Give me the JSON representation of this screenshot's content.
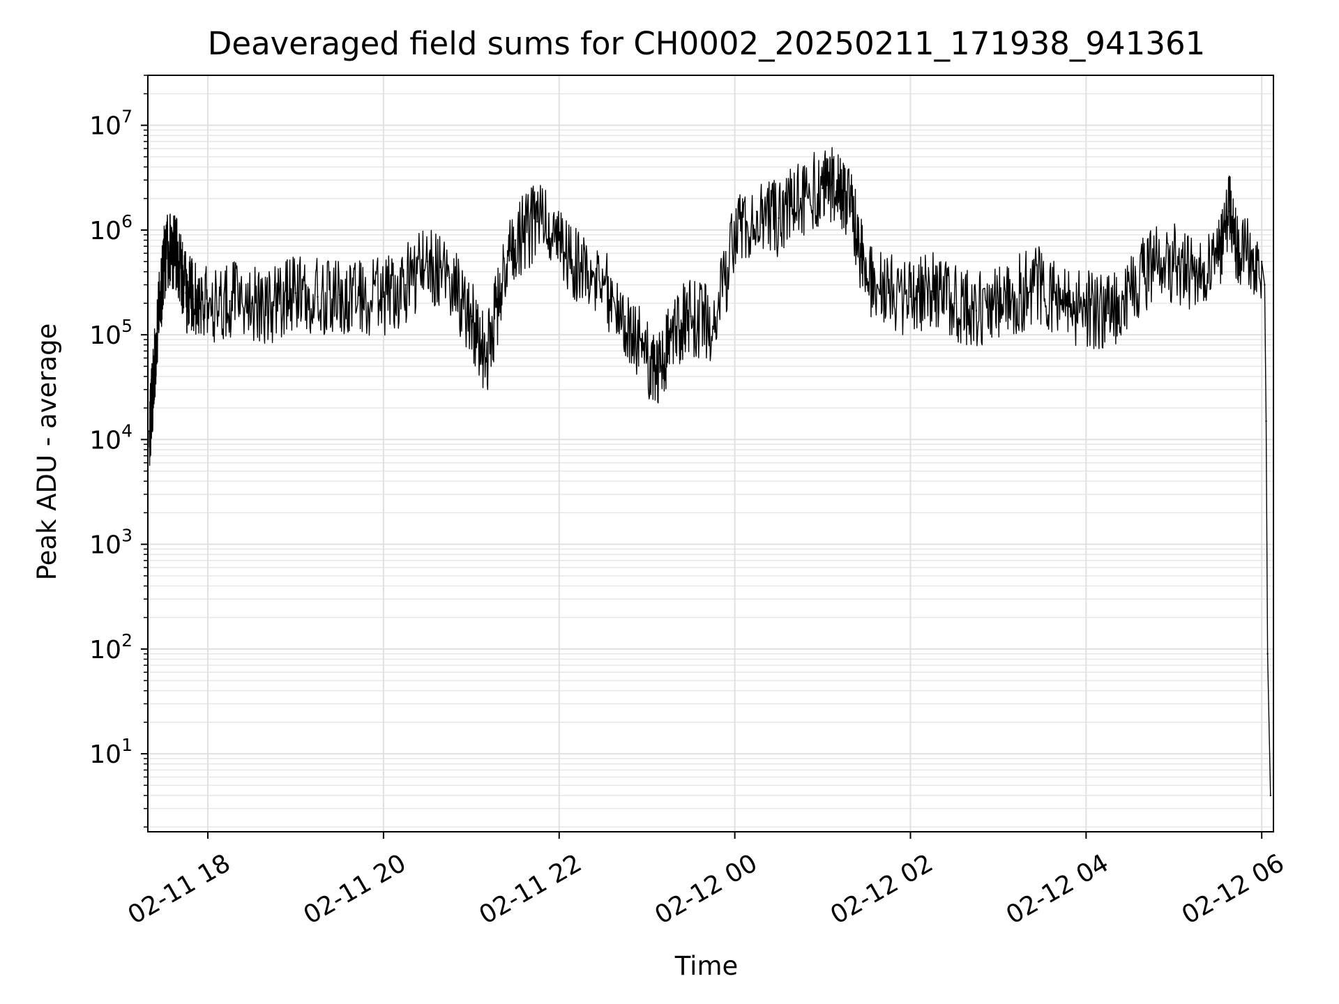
{
  "chart_data": {
    "type": "line",
    "title": "Deaveraged field sums for CH0002_20250211_171938_941361",
    "xlabel": "Time",
    "ylabel": "Peak ADU - average",
    "y_scale": "log",
    "grid": true,
    "grid_minor": true,
    "legend": "none",
    "xlim": [
      "2025-02-11 17:19",
      "2025-02-12 06:08"
    ],
    "ylim": [
      1.8,
      30000000
    ],
    "x_ticks": [
      {
        "value": "2025-02-11 18:00",
        "label": "02-11 18"
      },
      {
        "value": "2025-02-11 20:00",
        "label": "02-11 20"
      },
      {
        "value": "2025-02-11 22:00",
        "label": "02-11 22"
      },
      {
        "value": "2025-02-12 00:00",
        "label": "02-12 00"
      },
      {
        "value": "2025-02-12 02:00",
        "label": "02-12 02"
      },
      {
        "value": "2025-02-12 04:00",
        "label": "02-12 04"
      },
      {
        "value": "2025-02-12 06:00",
        "label": "02-12 06"
      }
    ],
    "y_ticks": [
      {
        "value": 10,
        "base": "10",
        "exp": "1"
      },
      {
        "value": 100,
        "base": "10",
        "exp": "2"
      },
      {
        "value": 1000,
        "base": "10",
        "exp": "3"
      },
      {
        "value": 10000,
        "base": "10",
        "exp": "4"
      },
      {
        "value": 100000,
        "base": "10",
        "exp": "5"
      },
      {
        "value": 1000000,
        "base": "10",
        "exp": "6"
      },
      {
        "value": 10000000,
        "base": "10",
        "exp": "7"
      }
    ],
    "line_color": "#000000",
    "series": [
      {
        "x": [
          "2025-02-11 17:20",
          "2025-02-11 17:22",
          "2025-02-11 17:25",
          "2025-02-11 17:30",
          "2025-02-11 17:35",
          "2025-02-11 17:40",
          "2025-02-11 17:45",
          "2025-02-11 17:50",
          "2025-02-11 18:00",
          "2025-02-11 18:15",
          "2025-02-11 18:30",
          "2025-02-11 18:45",
          "2025-02-11 19:00",
          "2025-02-11 19:15",
          "2025-02-11 19:30",
          "2025-02-11 19:45",
          "2025-02-11 20:00",
          "2025-02-11 20:15",
          "2025-02-11 20:30",
          "2025-02-11 20:45",
          "2025-02-11 21:00",
          "2025-02-11 21:10",
          "2025-02-11 21:20",
          "2025-02-11 21:30",
          "2025-02-11 21:45",
          "2025-02-11 22:00",
          "2025-02-11 22:15",
          "2025-02-11 22:30",
          "2025-02-11 22:45",
          "2025-02-11 23:00",
          "2025-02-11 23:10",
          "2025-02-11 23:20",
          "2025-02-11 23:30",
          "2025-02-11 23:45",
          "2025-02-12 00:00",
          "2025-02-12 00:15",
          "2025-02-12 00:30",
          "2025-02-12 00:45",
          "2025-02-12 01:00",
          "2025-02-12 01:10",
          "2025-02-12 01:20",
          "2025-02-12 01:30",
          "2025-02-12 01:45",
          "2025-02-12 02:00",
          "2025-02-12 02:15",
          "2025-02-12 02:30",
          "2025-02-12 02:45",
          "2025-02-12 03:00",
          "2025-02-12 03:15",
          "2025-02-12 03:30",
          "2025-02-12 03:45",
          "2025-02-12 04:00",
          "2025-02-12 04:15",
          "2025-02-12 04:30",
          "2025-02-12 04:45",
          "2025-02-12 05:00",
          "2025-02-12 05:15",
          "2025-02-12 05:30",
          "2025-02-12 05:38",
          "2025-02-12 05:45",
          "2025-02-12 06:00",
          "2025-02-12 06:02",
          "2025-02-12 06:03",
          "2025-02-12 06:04",
          "2025-02-12 06:06"
        ],
        "y": [
          12000,
          25000,
          90000,
          500000,
          700000,
          500000,
          250000,
          220000,
          200000,
          210000,
          200000,
          190000,
          250000,
          230000,
          240000,
          220000,
          230000,
          300000,
          500000,
          350000,
          150000,
          60000,
          250000,
          800000,
          1200000,
          800000,
          400000,
          300000,
          150000,
          60000,
          50000,
          120000,
          150000,
          120000,
          800000,
          1500000,
          1300000,
          2000000,
          2500000,
          3000000,
          1500000,
          300000,
          250000,
          230000,
          260000,
          200000,
          170000,
          200000,
          250000,
          300000,
          200000,
          180000,
          160000,
          260000,
          450000,
          480000,
          400000,
          550000,
          1500000,
          600000,
          500000,
          300000,
          15000,
          90,
          4
        ]
      }
    ]
  }
}
